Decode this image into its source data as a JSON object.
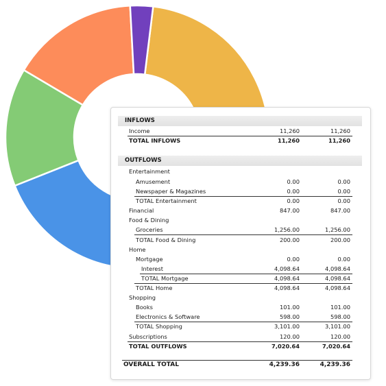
{
  "chart_data": {
    "type": "pie",
    "segments": [
      {
        "value": 28,
        "color": "#eeb548"
      },
      {
        "value": 14,
        "color": "#eeb548"
      },
      {
        "value": 18,
        "color": "#4a93e7"
      },
      {
        "value": 13,
        "color": "#84cb75"
      },
      {
        "value": 14,
        "color": "#fd8c5a"
      },
      {
        "value": 2.5,
        "color": "#7140bd"
      }
    ]
  },
  "report": {
    "inflows": {
      "title": "INFLOWS",
      "income": {
        "label": "Income",
        "v1": "11,260",
        "v2": "11,260"
      },
      "total": {
        "label": "TOTAL INFLOWS",
        "v1": "11,260",
        "v2": "11,260"
      }
    },
    "outflows": {
      "title": "OUTFLOWS",
      "entertainment": "Entertainment",
      "amusement": {
        "label": "Amusement",
        "v1": "0.00",
        "v2": "0.00"
      },
      "newspaper": {
        "label": "Newspaper & Magazines",
        "v1": "0.00",
        "v2": "0.00"
      },
      "total_entertainment": {
        "label": "TOTAL Entertainment",
        "v1": "0.00",
        "v2": "0.00"
      },
      "financial": {
        "label": "Financial",
        "v1": "847.00",
        "v2": "847.00"
      },
      "food": "Food & Dining",
      "groceries": {
        "label": "Groceries",
        "v1": "1,256.00",
        "v2": "1,256.00"
      },
      "total_food": {
        "label": "TOTAL Food & Dining",
        "v1": "200.00",
        "v2": "200.00"
      },
      "home": "Home",
      "mortgage": {
        "label": "Mortgage",
        "v1": "0.00",
        "v2": "0.00"
      },
      "interest": {
        "label": "Interest",
        "v1": "4,098.64",
        "v2": "4,098.64"
      },
      "total_mortgage": {
        "label": "TOTAL Mortgage",
        "v1": "4,098.64",
        "v2": "4,098.64"
      },
      "total_home": {
        "label": "TOTAL Home",
        "v1": "4,098.64",
        "v2": "4,098.64"
      },
      "shopping": "Shopping",
      "books": {
        "label": "Books",
        "v1": "101.00",
        "v2": "101.00"
      },
      "electronics": {
        "label": "Electronics & Software",
        "v1": "598.00",
        "v2": "598.00"
      },
      "total_shopping": {
        "label": "TOTAL Shopping",
        "v1": "3,101.00",
        "v2": "3,101.00"
      },
      "subscriptions": {
        "label": "Subscriptions",
        "v1": "120.00",
        "v2": "120.00"
      },
      "total": {
        "label": "TOTAL OUTFLOWS",
        "v1": "7,020.64",
        "v2": "7,020.64"
      }
    },
    "overall": {
      "label": "OVERALL TOTAL",
      "v1": "4,239.36",
      "v2": "4,239.36"
    }
  }
}
